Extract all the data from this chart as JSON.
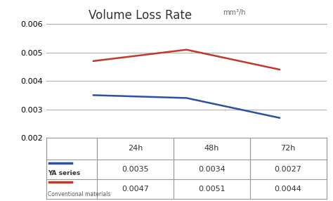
{
  "title": "Volume Loss Rate",
  "title_unit": "mm³/h",
  "x_labels": [
    "24h",
    "48h",
    "72h"
  ],
  "x_values": [
    1,
    2,
    3
  ],
  "ya_series": [
    0.0035,
    0.0034,
    0.0027
  ],
  "conv_series": [
    0.0047,
    0.0051,
    0.0044
  ],
  "ya_color": "#2952a3",
  "conv_color": "#c0392b",
  "ylim": [
    0.002,
    0.006
  ],
  "yticks": [
    0.002,
    0.003,
    0.004,
    0.005,
    0.006
  ],
  "ya_label": "YA series",
  "conv_label": "Conventional materials",
  "table_headers": [
    "24h",
    "48h",
    "72h"
  ],
  "table_row1": [
    "0.0035",
    "0.0034",
    "0.0027"
  ],
  "table_row2": [
    "0.0047",
    "0.0051",
    "0.0044"
  ],
  "bg_color": "#ffffff",
  "grid_color": "#b0b0b0",
  "border_color": "#999999",
  "title_fontsize": 12,
  "tick_fontsize": 8,
  "table_fontsize": 8,
  "unit_fontsize": 7
}
